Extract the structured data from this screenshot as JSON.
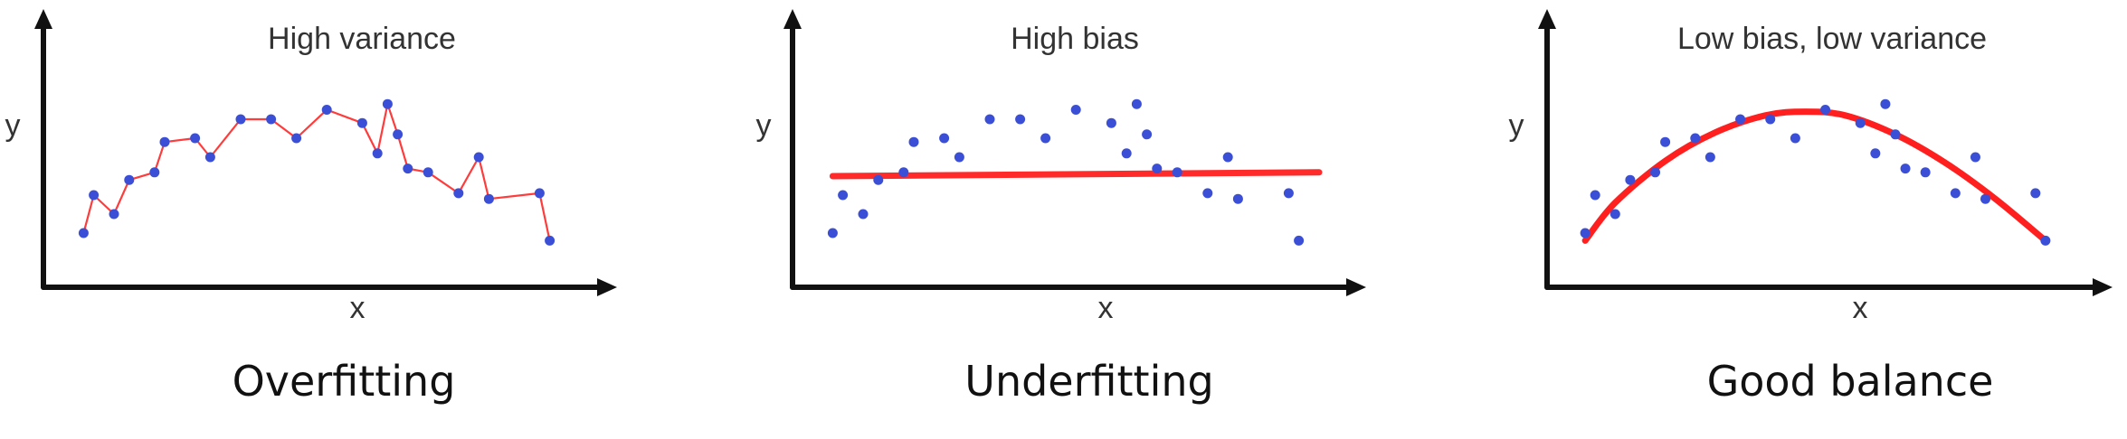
{
  "chart_data": [
    {
      "type": "scatter",
      "fit": "connect-the-dots",
      "title": "High variance",
      "caption": "Overfitting",
      "xlabel": "x",
      "ylabel": "y",
      "xlim": [
        0,
        100
      ],
      "ylim": [
        0,
        100
      ],
      "fit_color": "#ff3b3b",
      "point_color": "#3a4fd6",
      "points": [
        [
          4,
          20
        ],
        [
          6,
          40
        ],
        [
          10,
          30
        ],
        [
          13,
          48
        ],
        [
          18,
          52
        ],
        [
          20,
          68
        ],
        [
          26,
          70
        ],
        [
          29,
          60
        ],
        [
          35,
          80
        ],
        [
          41,
          80
        ],
        [
          46,
          70
        ],
        [
          52,
          85
        ],
        [
          59,
          78
        ],
        [
          62,
          62
        ],
        [
          64,
          88
        ],
        [
          66,
          72
        ],
        [
          68,
          54
        ],
        [
          72,
          52
        ],
        [
          78,
          41
        ],
        [
          82,
          60
        ],
        [
          84,
          38
        ],
        [
          94,
          41
        ],
        [
          96,
          16
        ]
      ]
    },
    {
      "type": "scatter",
      "fit": "line",
      "title": "High bias",
      "caption": "Underfitting",
      "xlabel": "x",
      "ylabel": "y",
      "xlim": [
        0,
        100
      ],
      "ylim": [
        0,
        100
      ],
      "fit_color": "#ff2a2a",
      "point_color": "#3a4fd6",
      "line": [
        [
          4,
          50
        ],
        [
          100,
          52
        ]
      ],
      "points": [
        [
          4,
          20
        ],
        [
          6,
          40
        ],
        [
          10,
          30
        ],
        [
          13,
          48
        ],
        [
          18,
          52
        ],
        [
          20,
          68
        ],
        [
          26,
          70
        ],
        [
          29,
          60
        ],
        [
          35,
          80
        ],
        [
          41,
          80
        ],
        [
          46,
          70
        ],
        [
          52,
          85
        ],
        [
          59,
          78
        ],
        [
          62,
          62
        ],
        [
          64,
          88
        ],
        [
          66,
          72
        ],
        [
          68,
          54
        ],
        [
          72,
          52
        ],
        [
          78,
          41
        ],
        [
          82,
          60
        ],
        [
          84,
          38
        ],
        [
          94,
          41
        ],
        [
          96,
          16
        ]
      ]
    },
    {
      "type": "scatter",
      "fit": "curve",
      "title": "Low bias, low variance",
      "caption": "Good balance",
      "xlabel": "x",
      "ylabel": "y",
      "xlim": [
        0,
        100
      ],
      "ylim": [
        0,
        100
      ],
      "fit_color": "#ff1f1f",
      "point_color": "#3a4fd6",
      "curve": [
        [
          4,
          16
        ],
        [
          10,
          36
        ],
        [
          20,
          58
        ],
        [
          30,
          73
        ],
        [
          40,
          82
        ],
        [
          48,
          84
        ],
        [
          56,
          82
        ],
        [
          66,
          72
        ],
        [
          76,
          57
        ],
        [
          86,
          38
        ],
        [
          96,
          16
        ]
      ],
      "points": [
        [
          4,
          20
        ],
        [
          6,
          40
        ],
        [
          10,
          30
        ],
        [
          13,
          48
        ],
        [
          18,
          52
        ],
        [
          20,
          68
        ],
        [
          26,
          70
        ],
        [
          29,
          60
        ],
        [
          35,
          80
        ],
        [
          41,
          80
        ],
        [
          46,
          70
        ],
        [
          52,
          85
        ],
        [
          59,
          78
        ],
        [
          62,
          62
        ],
        [
          64,
          88
        ],
        [
          66,
          72
        ],
        [
          68,
          54
        ],
        [
          72,
          52
        ],
        [
          78,
          41
        ],
        [
          82,
          60
        ],
        [
          84,
          38
        ],
        [
          94,
          41
        ],
        [
          96,
          16
        ]
      ]
    }
  ]
}
